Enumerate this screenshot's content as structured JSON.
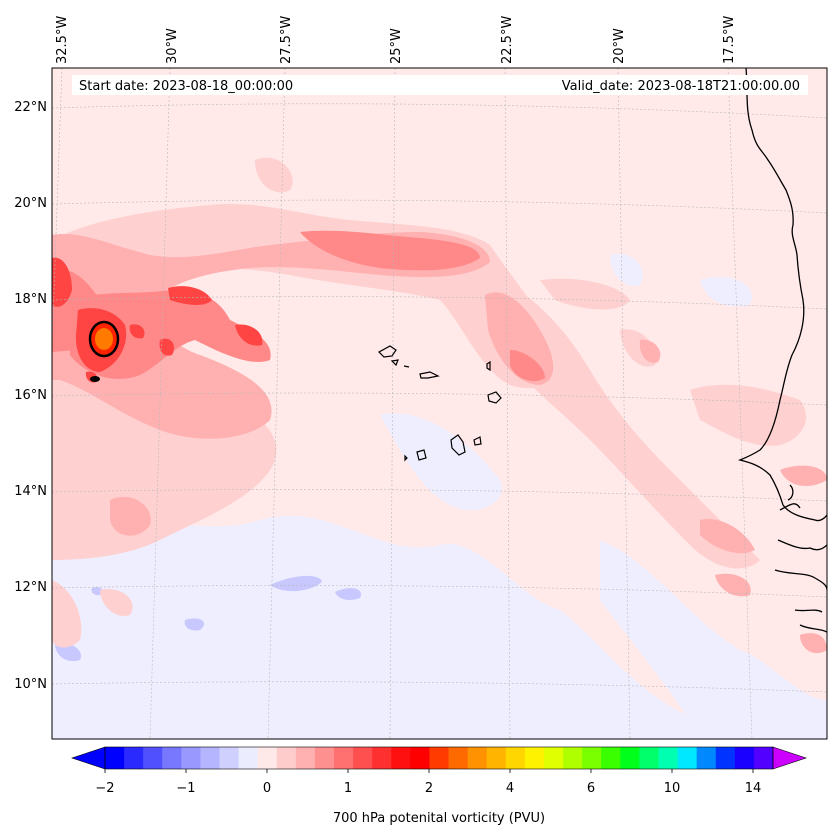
{
  "map": {
    "start_label": "Start date: 2023-08-18_00:00:00",
    "valid_label": "Valid_date: 2023-08-18T21:00:00.00",
    "lon_labels": [
      "32.5°W",
      "30°W",
      "27.5°W",
      "25°W",
      "22.5°W",
      "20°W",
      "17.5°W"
    ],
    "lat_labels": [
      "22°N",
      "20°N",
      "18°N",
      "16°N",
      "14°N",
      "12°N",
      "10°N"
    ],
    "colorbar_ticks": [
      "−2",
      "−1",
      "0",
      "1",
      "2",
      "4",
      "6",
      "10",
      "14"
    ],
    "colorbar_colors": [
      "#0000ff",
      "#2a2aff",
      "#5050ff",
      "#7878ff",
      "#9898ff",
      "#b4b4ff",
      "#d0d0ff",
      "#ececff",
      "#ffe8e8",
      "#ffcccc",
      "#ffb0b0",
      "#ff9090",
      "#ff7070",
      "#ff5050",
      "#ff3030",
      "#ff1010",
      "#ff0000",
      "#ff3b00",
      "#ff6a00",
      "#ff9200",
      "#ffb400",
      "#ffd600",
      "#fff200",
      "#e0ff00",
      "#b0ff00",
      "#7aff00",
      "#3aff00",
      "#00ff1a",
      "#00ff6a",
      "#00ffb0",
      "#00e8ff",
      "#0088ff",
      "#0033ff",
      "#1a00ff",
      "#5200ff"
    ],
    "colorbar_over": "#cc00ff",
    "colorbar_under": "#0000ff",
    "colorbar_label": "700 hPa potenital vorticity (PVU)",
    "colors": {
      "background_pv": "#ffe8e8",
      "pv_low": "#ffcccc",
      "pv_mid": "#ff9a9a",
      "pv_high": "#ff4a4a",
      "pv_max": "#ff7a00",
      "pv_negative": "#eaeaff",
      "pv_negative_strong": "#c8c8ff",
      "coastline": "#000000"
    }
  }
}
